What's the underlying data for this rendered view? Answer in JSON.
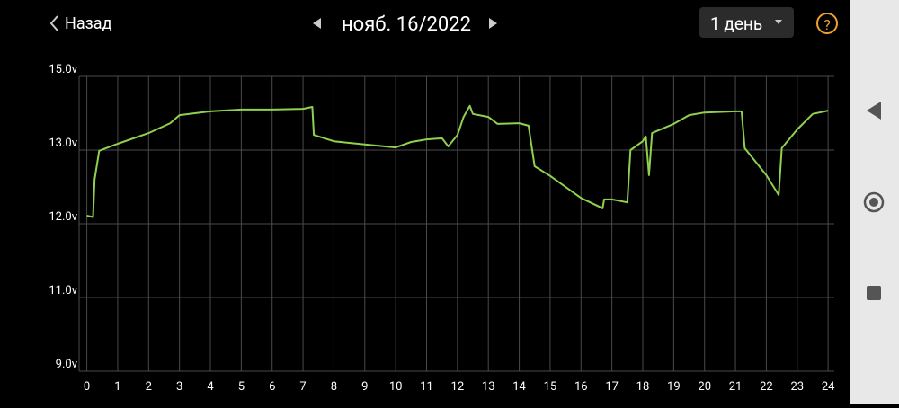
{
  "header": {
    "back": "Назад",
    "date": "нояб. 16/2022",
    "period": "1 день",
    "help": "?"
  },
  "chart_data": {
    "type": "line",
    "x": [
      0,
      0.2,
      0.25,
      0.4,
      1,
      2,
      2.7,
      3,
      4,
      5,
      6,
      7,
      7.3,
      7.35,
      8,
      9,
      10,
      10.5,
      11,
      11.5,
      11.7,
      12,
      12.2,
      12.4,
      12.5,
      13,
      13.3,
      14,
      14.3,
      14.5,
      15,
      16,
      16.7,
      16.75,
      17,
      17.5,
      17.6,
      18,
      18.1,
      18.2,
      18.3,
      19,
      19.5,
      20,
      21,
      21.2,
      21.3,
      22,
      22.4,
      22.5,
      23,
      23.5,
      24
    ],
    "series": [
      {
        "color": "#8fd14f",
        "values": [
          12.11,
          12.09,
          12.6,
          12.99,
          13.17,
          13.46,
          13.73,
          13.95,
          14.05,
          14.1,
          14.1,
          14.12,
          14.17,
          13.41,
          13.24,
          13.15,
          13.07,
          13.22,
          13.29,
          13.32,
          13.1,
          13.41,
          13.9,
          14.2,
          13.98,
          13.9,
          13.71,
          13.73,
          13.66,
          12.78,
          12.65,
          12.35,
          12.21,
          12.33,
          12.33,
          12.29,
          13.0,
          13.24,
          13.37,
          12.66,
          13.46,
          13.71,
          13.95,
          14.02,
          14.05,
          14.05,
          13.05,
          12.66,
          12.39,
          13.05,
          13.56,
          13.98,
          14.07
        ]
      }
    ],
    "xlim": [
      -0.25,
      24.2
    ],
    "xticks": [
      0,
      1,
      2,
      3,
      4,
      5,
      6,
      7,
      8,
      9,
      10,
      11,
      12,
      13,
      14,
      15,
      16,
      17,
      18,
      19,
      20,
      21,
      22,
      23,
      24
    ],
    "ylim": [
      9,
      15
    ],
    "yticks": [
      {
        "value": 15,
        "label": "15.0v"
      },
      {
        "value": 13,
        "label": "13.0v"
      },
      {
        "value": 12,
        "label": "12.0v"
      },
      {
        "value": 11,
        "label": "11.0v"
      },
      {
        "value": 9,
        "label": "9.0v"
      }
    ],
    "grid": true
  }
}
